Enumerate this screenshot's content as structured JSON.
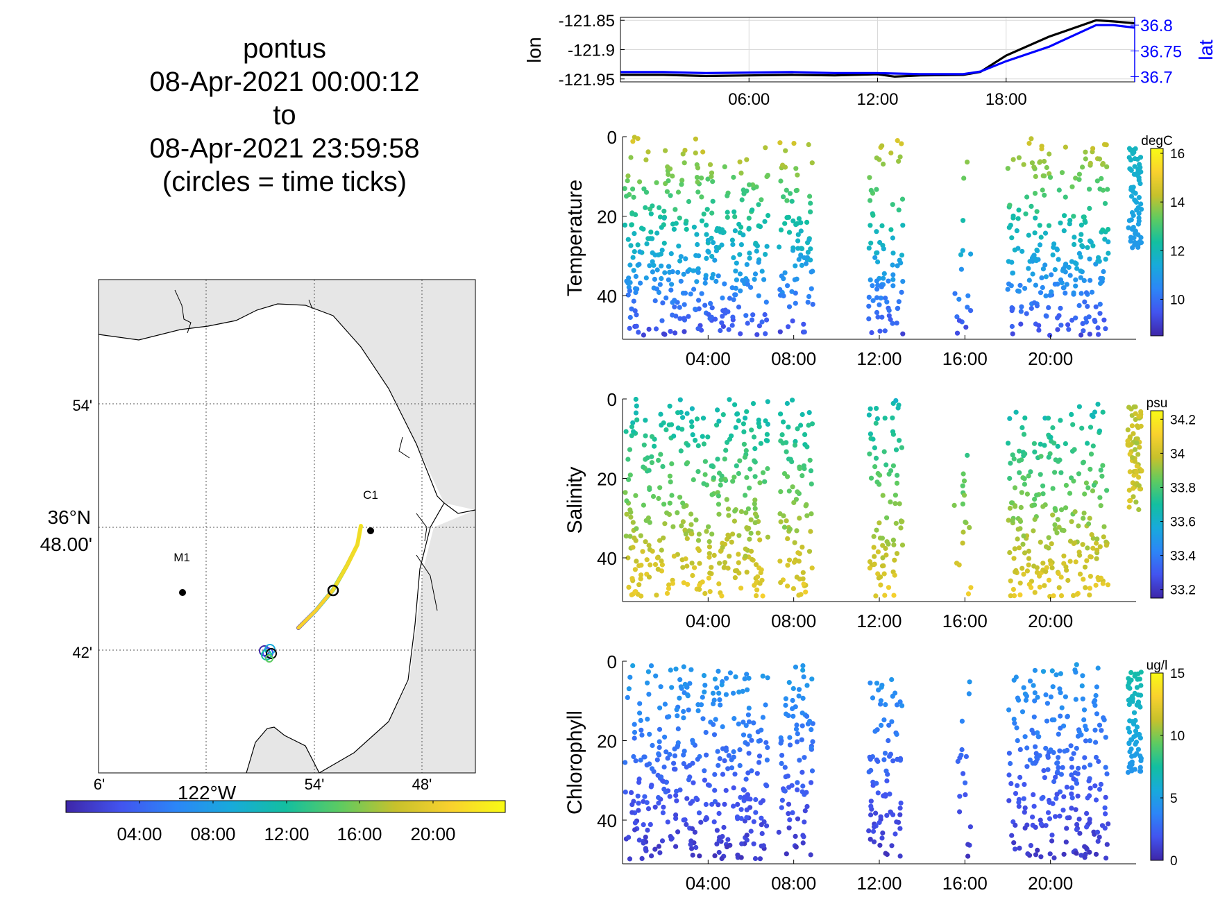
{
  "title": {
    "line1": "pontus",
    "line2": "08-Apr-2021 00:00:12",
    "line3": "to",
    "line4": "08-Apr-2021 23:59:58",
    "line5": "(circles = time ticks)"
  },
  "colors": {
    "lon_line": "#000000",
    "lat_line": "#0000ff",
    "land": "#e6e6e6",
    "coast": "#000000",
    "colormap": [
      "#3e26a8",
      "#4254ef",
      "#2c86f7",
      "#18aadb",
      "#13bfa0",
      "#5ecb61",
      "#c7c12c",
      "#f9d12e",
      "#f9fb15"
    ]
  },
  "map": {
    "stations": [
      {
        "label": "M1"
      },
      {
        "label": "C1"
      }
    ],
    "lat_labels": [
      "54'",
      "36°N",
      "48.00'",
      "42'"
    ],
    "lon_labels": [
      "6'",
      "122°W",
      "54'",
      "48'"
    ],
    "time_colorbar_ticks": [
      "04:00",
      "08:00",
      "12:00",
      "16:00",
      "20:00"
    ]
  },
  "chart_data": [
    {
      "type": "line",
      "name": "position",
      "ylabel_left": "lon",
      "ylabel_right": "lat",
      "x_ticks": [
        "06:00",
        "12:00",
        "18:00"
      ],
      "xlim_hours": [
        0,
        24
      ],
      "ylim_left": [
        -121.955,
        -121.845
      ],
      "y_ticks_left": [
        "-121.85",
        "-121.9",
        "-121.95"
      ],
      "ylim_right": [
        36.69,
        36.815
      ],
      "y_ticks_right": [
        "36.8",
        "36.75",
        "36.7"
      ],
      "series": [
        {
          "name": "lon",
          "x": [
            0,
            2,
            4,
            6,
            8,
            10,
            12,
            12.8,
            14,
            16,
            16.8,
            18,
            20,
            22.2,
            23,
            24
          ],
          "values": [
            -121.943,
            -121.943,
            -121.945,
            -121.944,
            -121.943,
            -121.944,
            -121.942,
            -121.946,
            -121.944,
            -121.943,
            -121.938,
            -121.91,
            -121.878,
            -121.85,
            -121.852,
            -121.855
          ]
        },
        {
          "name": "lat",
          "x": [
            0,
            2,
            4,
            6,
            8,
            10,
            12,
            14,
            16,
            16.8,
            18,
            20,
            22.2,
            23,
            24
          ],
          "values": [
            36.709,
            36.709,
            36.707,
            36.708,
            36.709,
            36.707,
            36.707,
            36.705,
            36.705,
            36.71,
            36.73,
            36.758,
            36.8,
            36.8,
            36.795
          ]
        }
      ]
    },
    {
      "type": "scatter",
      "ylabel": "Temperature",
      "colorbar_unit": "degC",
      "colorbar_ticks": [
        "16",
        "14",
        "12",
        "10"
      ],
      "clim": [
        8.5,
        16.2
      ],
      "x_ticks": [
        "04:00",
        "08:00",
        "12:00",
        "16:00",
        "20:00"
      ],
      "y_ticks": [
        "0",
        "20",
        "40"
      ],
      "ylim": [
        0,
        51
      ],
      "y_reversed": true
    },
    {
      "type": "scatter",
      "ylabel": "Salinity",
      "colorbar_unit": "psu",
      "colorbar_ticks": [
        "34.2",
        "34",
        "33.8",
        "33.6",
        "33.4",
        "33.2"
      ],
      "clim": [
        33.15,
        34.25
      ],
      "x_ticks": [
        "04:00",
        "08:00",
        "12:00",
        "16:00",
        "20:00"
      ],
      "y_ticks": [
        "0",
        "20",
        "40"
      ],
      "ylim": [
        0,
        51
      ],
      "y_reversed": true
    },
    {
      "type": "scatter",
      "ylabel": "Chlorophyll",
      "colorbar_unit": "ug/l",
      "colorbar_ticks": [
        "15",
        "10",
        "5",
        "0"
      ],
      "clim": [
        0,
        15
      ],
      "x_ticks": [
        "04:00",
        "08:00",
        "12:00",
        "16:00",
        "20:00"
      ],
      "y_ticks": [
        "0",
        "20",
        "40"
      ],
      "ylim": [
        0,
        51
      ],
      "y_reversed": true
    }
  ]
}
